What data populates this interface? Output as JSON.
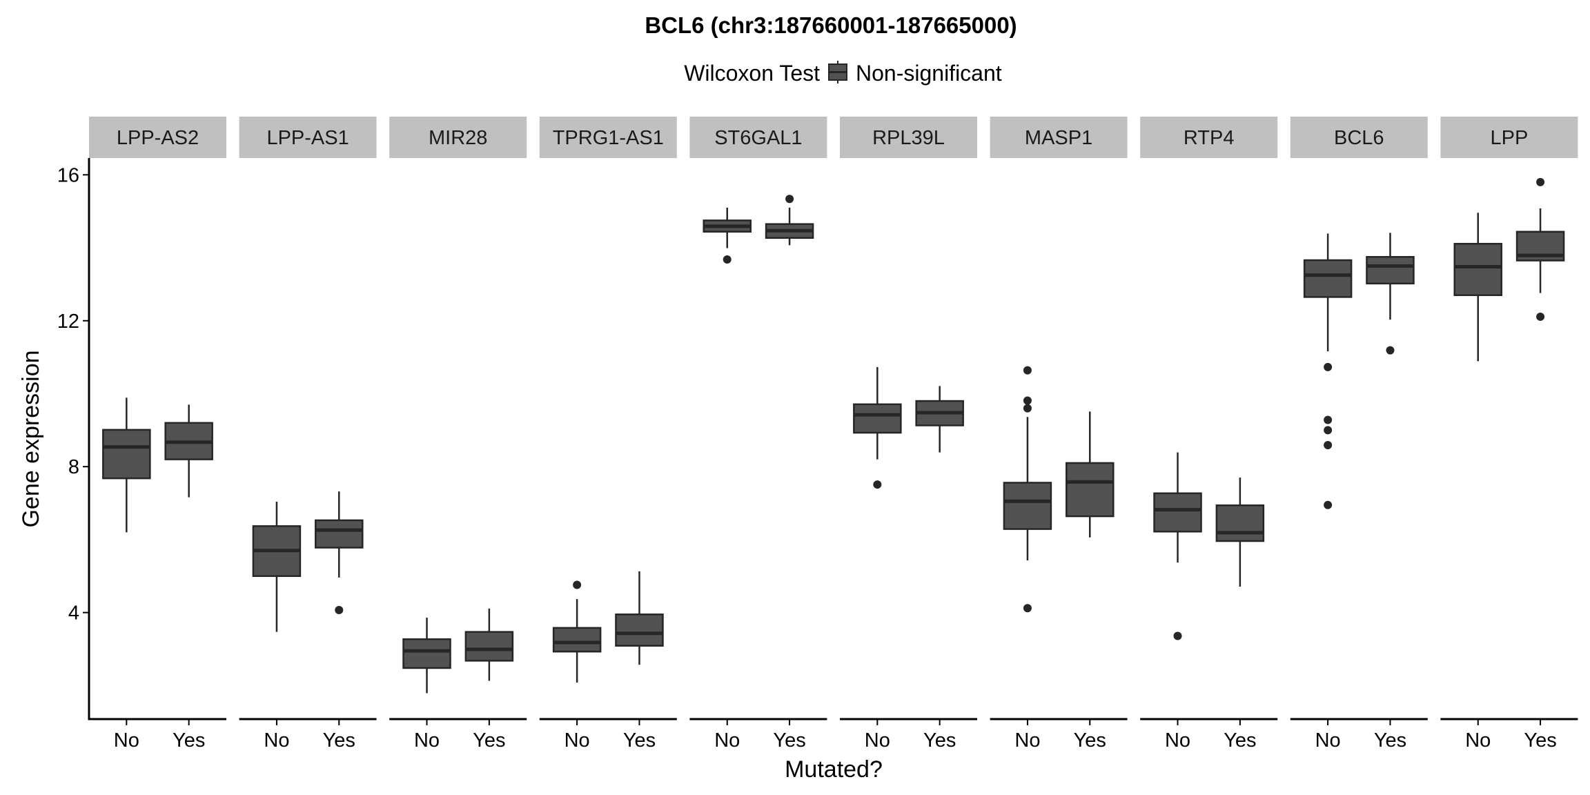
{
  "chart_data": {
    "type": "boxplot",
    "title": "BCL6 (chr3:187660001-187665000)",
    "xlabel": "Mutated?",
    "ylabel": "Gene expression",
    "ylim": [
      1.08,
      16.46
    ],
    "yticks": [
      4,
      8,
      12,
      16
    ],
    "categories": [
      "No",
      "Yes"
    ],
    "grid": false,
    "legend": {
      "position": "top",
      "title": "Wilcoxon Test",
      "entries": [
        {
          "label": "Non-significant",
          "color": "#525252"
        }
      ]
    },
    "colors": {
      "box_fill": "#525252",
      "box_stroke": "#262626",
      "strip_fill": "#c0c0c0",
      "axis": "#000000"
    },
    "facets": [
      {
        "label": "LPP-AS2",
        "groups": [
          {
            "name": "No",
            "whisker_low": 6.2,
            "q1": 7.68,
            "median": 8.54,
            "q3": 9.01,
            "whisker_high": 9.89,
            "outliers": []
          },
          {
            "name": "Yes",
            "whisker_low": 7.16,
            "q1": 8.2,
            "median": 8.67,
            "q3": 9.2,
            "whisker_high": 9.7,
            "outliers": []
          }
        ]
      },
      {
        "label": "LPP-AS1",
        "groups": [
          {
            "name": "No",
            "whisker_low": 3.47,
            "q1": 5.0,
            "median": 5.7,
            "q3": 6.37,
            "whisker_high": 7.04,
            "outliers": []
          },
          {
            "name": "Yes",
            "whisker_low": 4.96,
            "q1": 5.78,
            "median": 6.26,
            "q3": 6.53,
            "whisker_high": 7.32,
            "outliers": [
              4.07
            ]
          }
        ]
      },
      {
        "label": "MIR28",
        "groups": [
          {
            "name": "No",
            "whisker_low": 1.79,
            "q1": 2.48,
            "median": 2.95,
            "q3": 3.27,
            "whisker_high": 3.86,
            "outliers": []
          },
          {
            "name": "Yes",
            "whisker_low": 2.13,
            "q1": 2.68,
            "median": 2.99,
            "q3": 3.47,
            "whisker_high": 4.11,
            "outliers": []
          }
        ]
      },
      {
        "label": "TPRG1-AS1",
        "groups": [
          {
            "name": "No",
            "whisker_low": 2.08,
            "q1": 2.93,
            "median": 3.18,
            "q3": 3.58,
            "whisker_high": 4.37,
            "outliers": [
              4.76
            ]
          },
          {
            "name": "Yes",
            "whisker_low": 2.57,
            "q1": 3.09,
            "median": 3.43,
            "q3": 3.95,
            "whisker_high": 5.13,
            "outliers": []
          }
        ]
      },
      {
        "label": "ST6GAL1",
        "groups": [
          {
            "name": "No",
            "whisker_low": 13.99,
            "q1": 14.44,
            "median": 14.59,
            "q3": 14.75,
            "whisker_high": 15.1,
            "outliers": [
              13.68
            ]
          },
          {
            "name": "Yes",
            "whisker_low": 14.07,
            "q1": 14.27,
            "median": 14.47,
            "q3": 14.65,
            "whisker_high": 15.1,
            "outliers": [
              15.34
            ]
          }
        ]
      },
      {
        "label": "RPL39L",
        "groups": [
          {
            "name": "No",
            "whisker_low": 8.2,
            "q1": 8.93,
            "median": 9.42,
            "q3": 9.71,
            "whisker_high": 10.73,
            "outliers": [
              7.51
            ]
          },
          {
            "name": "Yes",
            "whisker_low": 8.39,
            "q1": 9.13,
            "median": 9.48,
            "q3": 9.8,
            "whisker_high": 10.21,
            "outliers": []
          }
        ]
      },
      {
        "label": "MASP1",
        "groups": [
          {
            "name": "No",
            "whisker_low": 5.43,
            "q1": 6.29,
            "median": 7.05,
            "q3": 7.56,
            "whisker_high": 9.36,
            "outliers": [
              10.64,
              9.81,
              9.6,
              4.12
            ]
          },
          {
            "name": "Yes",
            "whisker_low": 6.06,
            "q1": 6.64,
            "median": 7.58,
            "q3": 8.1,
            "whisker_high": 9.51,
            "outliers": []
          }
        ]
      },
      {
        "label": "RTP4",
        "groups": [
          {
            "name": "No",
            "whisker_low": 5.37,
            "q1": 6.22,
            "median": 6.82,
            "q3": 7.27,
            "whisker_high": 8.39,
            "outliers": [
              3.36
            ]
          },
          {
            "name": "Yes",
            "whisker_low": 4.71,
            "q1": 5.96,
            "median": 6.19,
            "q3": 6.94,
            "whisker_high": 7.7,
            "outliers": []
          }
        ]
      },
      {
        "label": "BCL6",
        "groups": [
          {
            "name": "No",
            "whisker_low": 11.16,
            "q1": 12.65,
            "median": 13.25,
            "q3": 13.66,
            "whisker_high": 14.39,
            "outliers": [
              10.73,
              9.28,
              9.0,
              8.59,
              6.95
            ]
          },
          {
            "name": "Yes",
            "whisker_low": 12.03,
            "q1": 13.02,
            "median": 13.5,
            "q3": 13.75,
            "whisker_high": 14.41,
            "outliers": [
              11.19
            ]
          }
        ]
      },
      {
        "label": "LPP",
        "groups": [
          {
            "name": "No",
            "whisker_low": 10.89,
            "q1": 12.7,
            "median": 13.48,
            "q3": 14.11,
            "whisker_high": 14.96,
            "outliers": []
          },
          {
            "name": "Yes",
            "whisker_low": 12.76,
            "q1": 13.65,
            "median": 13.79,
            "q3": 14.44,
            "whisker_high": 15.08,
            "outliers": [
              15.8,
              12.11
            ]
          }
        ]
      }
    ]
  }
}
